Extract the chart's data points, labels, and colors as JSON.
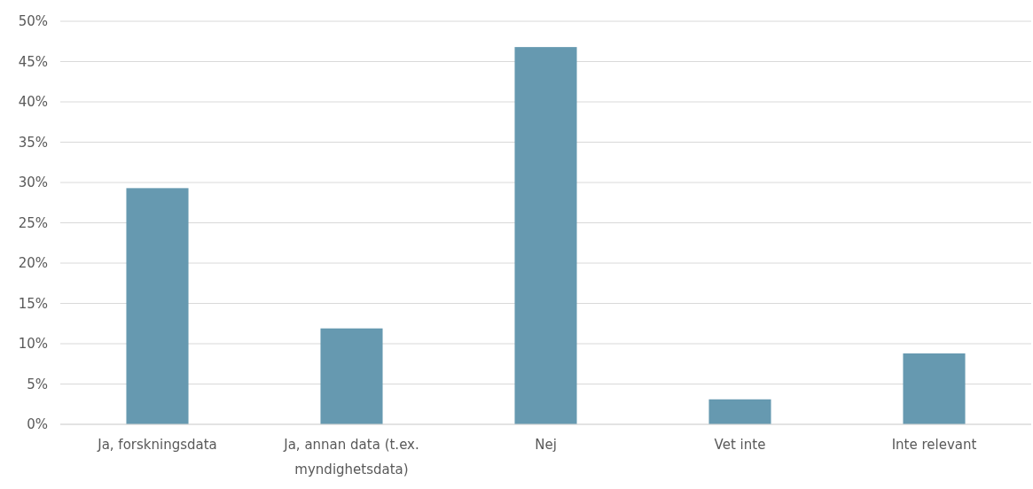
{
  "chart_data": {
    "type": "bar",
    "categories": [
      "Ja, forskningsdata",
      "Ja, annan data (t.ex. myndighetsdata)",
      "Nej",
      "Vet inte",
      "Inte relevant"
    ],
    "values": [
      29.3,
      11.9,
      46.8,
      3.1,
      8.8
    ],
    "color": "#6699b0",
    "ylim": [
      0,
      50
    ],
    "yticks": [
      {
        "value": 0,
        "label": "0%"
      },
      {
        "value": 5,
        "label": "5%"
      },
      {
        "value": 10,
        "label": "10%"
      },
      {
        "value": 15,
        "label": "15%"
      },
      {
        "value": 20,
        "label": "20%"
      },
      {
        "value": 25,
        "label": "25%"
      },
      {
        "value": 30,
        "label": "30%"
      },
      {
        "value": 35,
        "label": "35%"
      },
      {
        "value": 40,
        "label": "40%"
      },
      {
        "value": 45,
        "label": "45%"
      },
      {
        "value": 50,
        "label": "50%"
      }
    ],
    "grid": "y"
  }
}
